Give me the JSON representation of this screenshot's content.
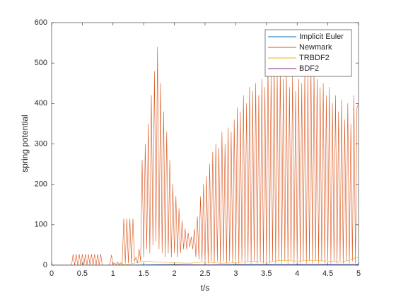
{
  "chart_data": {
    "type": "line",
    "xlabel": "t/s",
    "ylabel": "spring potential",
    "xlim": [
      0,
      5
    ],
    "xticks": [
      0,
      0.5,
      1,
      1.5,
      2,
      2.5,
      3,
      3.5,
      4,
      4.5,
      5
    ],
    "ylim": [
      0,
      600
    ],
    "yticks": [
      0,
      100,
      200,
      300,
      400,
      500,
      600
    ],
    "legend": "upper right",
    "series": [
      {
        "name": "Implicit Euler",
        "color": "#0072BD",
        "x": [
          0,
          0.5,
          1,
          1.5,
          2,
          2.5,
          3,
          3.5,
          4,
          4.5,
          5
        ],
        "values": [
          0,
          0,
          0,
          1,
          2,
          1,
          2,
          2,
          2,
          2,
          2
        ]
      },
      {
        "name": "Newmark",
        "color": "#D95319",
        "x": [
          0,
          0.025,
          0.05,
          0.075,
          0.1,
          0.125,
          0.15,
          0.175,
          0.2,
          0.225,
          0.25,
          0.275,
          0.3,
          0.325,
          0.35,
          0.375,
          0.4,
          0.425,
          0.45,
          0.475,
          0.5,
          0.525,
          0.55,
          0.575,
          0.6,
          0.625,
          0.65,
          0.675,
          0.7,
          0.725,
          0.75,
          0.775,
          0.8,
          0.825,
          0.85,
          0.875,
          0.9,
          0.925,
          0.95,
          0.975,
          1,
          1.025,
          1.05,
          1.075,
          1.1,
          1.125,
          1.15,
          1.175,
          1.2,
          1.225,
          1.25,
          1.275,
          1.3,
          1.325,
          1.35,
          1.375,
          1.4,
          1.425,
          1.45,
          1.475,
          1.5,
          1.525,
          1.55,
          1.575,
          1.6,
          1.625,
          1.65,
          1.675,
          1.7,
          1.725,
          1.75,
          1.775,
          1.8,
          1.825,
          1.85,
          1.875,
          1.9,
          1.925,
          1.95,
          1.975,
          2,
          2.025,
          2.05,
          2.075,
          2.1,
          2.125,
          2.15,
          2.175,
          2.2,
          2.225,
          2.25,
          2.275,
          2.3,
          2.325,
          2.35,
          2.375,
          2.4,
          2.425,
          2.45,
          2.475,
          2.5,
          2.525,
          2.55,
          2.575,
          2.6,
          2.625,
          2.65,
          2.675,
          2.7,
          2.725,
          2.75,
          2.775,
          2.8,
          2.825,
          2.85,
          2.875,
          2.9,
          2.925,
          2.95,
          2.975,
          3,
          3.025,
          3.05,
          3.075,
          3.1,
          3.125,
          3.15,
          3.175,
          3.2,
          3.225,
          3.25,
          3.275,
          3.3,
          3.325,
          3.35,
          3.375,
          3.4,
          3.425,
          3.45,
          3.475,
          3.5,
          3.525,
          3.55,
          3.575,
          3.6,
          3.625,
          3.65,
          3.675,
          3.7,
          3.725,
          3.75,
          3.775,
          3.8,
          3.825,
          3.85,
          3.875,
          3.9,
          3.925,
          3.95,
          3.975,
          4,
          4.025,
          4.05,
          4.075,
          4.1,
          4.125,
          4.15,
          4.175,
          4.2,
          4.225,
          4.25,
          4.275,
          4.3,
          4.325,
          4.35,
          4.375,
          4.4,
          4.425,
          4.45,
          4.475,
          4.5,
          4.525,
          4.55,
          4.575,
          4.6,
          4.625,
          4.65,
          4.675,
          4.7,
          4.725,
          4.75,
          4.775,
          4.8,
          4.825,
          4.85,
          4.875,
          4.9,
          4.925,
          4.95,
          4.975,
          5
        ],
        "values": [
          0,
          0,
          0,
          0,
          0,
          0,
          0,
          0,
          0,
          0,
          0,
          0,
          0,
          0,
          27,
          0,
          27,
          0,
          27,
          0,
          27,
          0,
          27,
          0,
          27,
          0,
          27,
          0,
          27,
          0,
          27,
          0,
          27,
          0,
          0,
          0,
          0,
          0,
          3,
          25,
          2,
          6,
          1,
          8,
          1,
          6,
          2,
          115,
          5,
          115,
          5,
          115,
          5,
          115,
          10,
          20,
          5,
          40,
          10,
          260,
          20,
          300,
          40,
          350,
          30,
          420,
          50,
          480,
          60,
          540,
          40,
          450,
          30,
          380,
          20,
          330,
          30,
          260,
          20,
          200,
          30,
          170,
          20,
          140,
          30,
          110,
          40,
          90,
          40,
          80,
          45,
          70,
          40,
          90,
          20,
          120,
          15,
          170,
          10,
          200,
          10,
          220,
          5,
          250,
          10,
          280,
          5,
          300,
          10,
          290,
          5,
          330,
          10,
          300,
          5,
          340,
          10,
          330,
          5,
          360,
          10,
          390,
          5,
          380,
          10,
          420,
          5,
          400,
          10,
          440,
          5,
          430,
          10,
          450,
          5,
          420,
          10,
          460,
          5,
          440,
          10,
          500,
          5,
          470,
          10,
          500,
          5,
          480,
          10,
          490,
          5,
          460,
          10,
          480,
          5,
          440,
          10,
          470,
          5,
          430,
          10,
          460,
          5,
          450,
          10,
          480,
          5,
          470,
          10,
          500,
          5,
          480,
          10,
          460,
          5,
          440,
          10,
          450,
          5,
          420,
          10,
          440,
          5,
          400,
          10,
          420,
          5,
          380,
          10,
          410,
          5,
          360,
          10,
          400,
          5,
          350,
          10,
          420,
          5,
          390,
          400
        ]
      },
      {
        "name": "TRBDF2",
        "color": "#EDB120",
        "x": [
          0,
          0.25,
          0.5,
          0.75,
          1,
          1.25,
          1.5,
          1.75,
          2,
          2.25,
          2.5,
          2.75,
          3,
          3.25,
          3.5,
          3.75,
          4,
          4.25,
          4.5,
          4.75,
          5
        ],
        "values": [
          0,
          0,
          0,
          0,
          0,
          2,
          10,
          8,
          6,
          5,
          8,
          5,
          6,
          10,
          8,
          12,
          10,
          12,
          10,
          8,
          20
        ]
      },
      {
        "name": "BDF2",
        "color": "#7E2F8E",
        "x": [
          0,
          0.5,
          1,
          1.5,
          2,
          2.5,
          3,
          3.5,
          4,
          4.5,
          5
        ],
        "values": [
          0,
          0,
          0,
          0,
          1,
          1,
          1,
          1,
          1,
          1,
          1
        ]
      }
    ]
  }
}
